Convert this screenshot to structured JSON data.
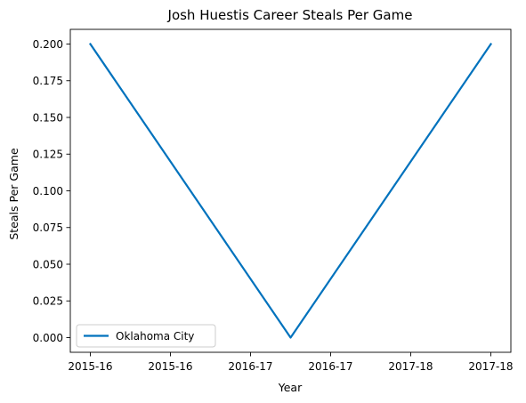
{
  "chart_data": {
    "type": "line",
    "title": "Josh Huestis Career Steals Per Game",
    "xlabel": "Year",
    "ylabel": "Steals Per Game",
    "x": [
      0,
      1,
      2
    ],
    "x_tick_positions": [
      0,
      0.4,
      0.8,
      1.2,
      1.6,
      2.0
    ],
    "x_tick_labels": [
      "2015-16",
      "2015-16",
      "2016-17",
      "2016-17",
      "2017-18",
      "2017-18"
    ],
    "y_ticks": [
      0.0,
      0.025,
      0.05,
      0.075,
      0.1,
      0.125,
      0.15,
      0.175,
      0.2
    ],
    "y_tick_labels": [
      "0.000",
      "0.025",
      "0.050",
      "0.075",
      "0.100",
      "0.125",
      "0.150",
      "0.175",
      "0.200"
    ],
    "xlim": [
      -0.1,
      2.1
    ],
    "ylim": [
      -0.01,
      0.21
    ],
    "grid": false,
    "legend_position": "lower-left",
    "series": [
      {
        "name": "Oklahoma City",
        "color": "#0072bd",
        "values": [
          0.2,
          0.0,
          0.2
        ]
      }
    ]
  }
}
